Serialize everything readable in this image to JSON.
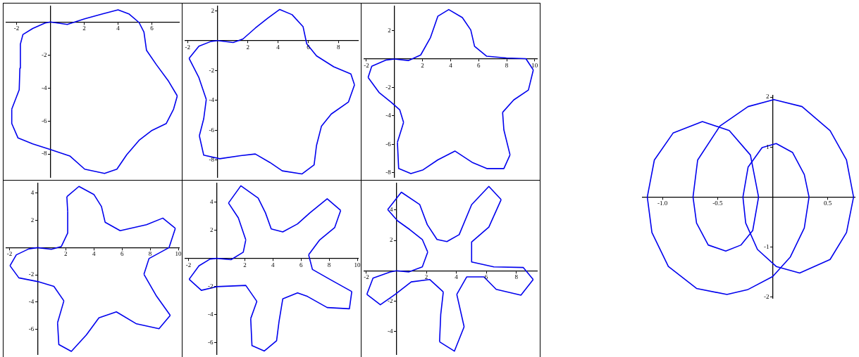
{
  "chart_data": [
    {
      "type": "line",
      "marker": "none",
      "line_style": "solid",
      "xlim": [
        -2.6,
        7.6
      ],
      "ylim": [
        -9.4,
        0.95
      ],
      "xticks": [
        -2,
        2,
        4,
        6
      ],
      "yticks": [
        -8,
        -6,
        -4,
        -2
      ],
      "series": [
        {
          "color": "#0000ee",
          "x": [
            0,
            1.0,
            2.03,
            3.05,
            4.0,
            4.66,
            5.24,
            5.53,
            5.68,
            6.26,
            6.99,
            7.5,
            7.28,
            6.85,
            5.97,
            5.24,
            4.51,
            3.93,
            3.2,
            2.03,
            1.15,
            0,
            -1.04,
            -1.91,
            -2.28,
            -2.28,
            -1.84,
            -1.8,
            -1.77,
            -1.62,
            -1.04,
            -0.31,
            0
          ],
          "values": [
            0,
            -0.15,
            0.19,
            0.48,
            0.74,
            0.48,
            -0.03,
            -0.61,
            -1.71,
            -2.58,
            -3.6,
            -4.48,
            -5.28,
            -6.15,
            -6.59,
            -7.17,
            -8.05,
            -8.92,
            -9.18,
            -8.92,
            -8.12,
            -7.73,
            -7.39,
            -7.03,
            -6.15,
            -5.28,
            -4.11,
            -2.8,
            -1.34,
            -0.76,
            -0.39,
            -0.06,
            0
          ]
        }
      ]
    },
    {
      "type": "line",
      "marker": "none",
      "line_style": "solid",
      "xlim": [
        -2.15,
        9.3
      ],
      "ylim": [
        -9.15,
        2.3
      ],
      "xticks": [
        -2,
        2,
        4,
        6,
        8
      ],
      "yticks": [
        -8,
        -6,
        -4,
        -2,
        2
      ],
      "series": [
        {
          "color": "#0000ee",
          "x": [
            0,
            1.02,
            1.67,
            2.49,
            3.3,
            4.11,
            4.93,
            5.66,
            5.9,
            6.55,
            7.69,
            8.83,
            9.07,
            8.67,
            7.53,
            6.88,
            6.55,
            6.39,
            5.58,
            4.28,
            3.46,
            2.49,
            1.51,
            0.13,
            -0.93,
            -1.22,
            -0.93,
            -0.76,
            -1.25,
            -1.9,
            -1.25,
            -0.44,
            0
          ],
          "values": [
            0,
            -0.13,
            0.11,
            0.84,
            1.49,
            2.09,
            1.74,
            0.93,
            -0.21,
            -1.02,
            -1.75,
            -2.24,
            -2.97,
            -4.11,
            -4.92,
            -5.73,
            -7.03,
            -8.33,
            -8.94,
            -8.73,
            -8.17,
            -7.6,
            -7.71,
            -7.92,
            -7.68,
            -6.38,
            -5.24,
            -3.94,
            -2.48,
            -1.19,
            -0.37,
            -0.05,
            0
          ]
        }
      ]
    },
    {
      "type": "line",
      "marker": "none",
      "line_style": "solid",
      "xlim": [
        -2.15,
        10.16
      ],
      "ylim": [
        -8.3,
        3.7
      ],
      "xticks": [
        -2,
        2,
        4,
        6,
        8,
        10
      ],
      "yticks": [
        -8,
        -6,
        -4,
        -2,
        2
      ],
      "series": [
        {
          "color": "#0000ee",
          "x": [
            0,
            0.99,
            1.87,
            2.57,
            3.09,
            3.87,
            4.84,
            5.44,
            5.71,
            6.58,
            7.98,
            9.37,
            9.9,
            9.55,
            8.5,
            7.71,
            7.8,
            8.24,
            7.8,
            6.58,
            5.53,
            4.31,
            3.09,
            2.04,
            1.17,
            0.3,
            0.21,
            0.65,
            0.38,
            -0.23,
            -1.1,
            -1.88,
            -1.62,
            -0.58,
            0
          ],
          "values": [
            0,
            -0.11,
            0.28,
            1.51,
            3.0,
            3.47,
            2.91,
            2.04,
            0.89,
            0.19,
            0.07,
            0.02,
            -0.77,
            -2.18,
            -2.88,
            -3.75,
            -4.98,
            -6.74,
            -7.7,
            -7.7,
            -7.26,
            -6.47,
            -7.09,
            -7.79,
            -8.05,
            -7.7,
            -5.86,
            -4.46,
            -3.58,
            -3.05,
            -2.35,
            -1.3,
            -0.51,
            -0.07,
            0
          ]
        }
      ]
    },
    {
      "type": "line",
      "marker": "none",
      "line_style": "solid",
      "xlim": [
        -2.22,
        10.05
      ],
      "ylim": [
        -7.83,
        4.72
      ],
      "xticks": [
        -2,
        2,
        4,
        6,
        8,
        10
      ],
      "yticks": [
        -6,
        -4,
        -2,
        2,
        4
      ],
      "series": [
        {
          "color": "#0000ee",
          "x": [
            0,
            0.98,
            1.69,
            2.14,
            2.14,
            2.08,
            2.94,
            4.0,
            4.54,
            4.8,
            5.87,
            7.74,
            8.9,
            9.79,
            9.34,
            7.92,
            7.56,
            8.45,
            9.43,
            8.63,
            7.03,
            5.6,
            4.36,
            3.47,
            2.4,
            1.51,
            1.42,
            1.87,
            1.16,
            0,
            -1.33,
            -1.96,
            -1.51,
            -0.62,
            0
          ],
          "values": [
            0,
            -0.12,
            0.09,
            1.07,
            2.67,
            3.74,
            4.5,
            3.91,
            3.02,
            1.87,
            1.25,
            1.69,
            2.17,
            1.42,
            0,
            -0.8,
            -1.96,
            -3.56,
            -4.98,
            -5.96,
            -5.6,
            -4.72,
            -5.16,
            -6.41,
            -7.62,
            -7.12,
            -5.52,
            -3.91,
            -2.85,
            -2.49,
            -2.22,
            -1.33,
            -0.53,
            -0.09,
            0
          ]
        }
      ]
    },
    {
      "type": "line",
      "marker": "none",
      "line_style": "solid",
      "xlim": [
        -2.23,
        10.05
      ],
      "ylim": [
        -6.84,
        5.35
      ],
      "xticks": [
        -2,
        2,
        4,
        6,
        8,
        10
      ],
      "yticks": [
        -6,
        -4,
        -2,
        2,
        4
      ],
      "series": [
        {
          "color": "#0000ee",
          "x": [
            0,
            1.02,
            1.89,
            2.07,
            1.54,
            0.84,
            1.72,
            2.95,
            3.47,
            3.88,
            4.7,
            5.75,
            6.63,
            7.86,
            8.82,
            8.39,
            7.33,
            6.54,
            6.81,
            8.04,
            9.61,
            9.44,
            7.86,
            6.46,
            5.75,
            4.7,
            4.44,
            4.26,
            3.39,
            2.51,
            2.42,
            2.86,
            2.07,
            0,
            -1.09,
            -1.96,
            -1.26,
            -0.47,
            0
          ],
          "values": [
            0,
            -0.09,
            0.44,
            1.32,
            2.89,
            3.95,
            5.18,
            4.3,
            3.25,
            2.1,
            1.89,
            2.46,
            3.25,
            4.25,
            3.42,
            2.19,
            1.32,
            0.26,
            -0.79,
            -1.49,
            -2.37,
            -3.6,
            -3.51,
            -2.72,
            -2.46,
            -2.89,
            -4.47,
            -5.88,
            -6.61,
            -6.23,
            -4.3,
            -3.07,
            -1.93,
            -2.02,
            -2.28,
            -1.49,
            -0.53,
            -0.05,
            0
          ]
        }
      ]
    },
    {
      "type": "line",
      "marker": "none",
      "line_style": "solid",
      "xlim": [
        -2.14,
        9.38
      ],
      "ylim": [
        -5.51,
        5.76
      ],
      "xticks": [
        -2,
        2,
        4,
        6,
        8
      ],
      "yticks": [
        -4,
        -2,
        2,
        4
      ],
      "series": [
        {
          "color": "#0000ee",
          "x": [
            0,
            0.82,
            1.73,
            2.09,
            1.73,
            0.9,
            0.08,
            -0.58,
            0.33,
            1.56,
            2.06,
            2.71,
            3.37,
            4.19,
            5.02,
            6.17,
            6.99,
            6.17,
            5.02,
            5.02,
            6.5,
            8.47,
            9.13,
            8.31,
            6.66,
            5.84,
            4.69,
            4.03,
            4.52,
            3.87,
            2.88,
            2.96,
            3.13,
            2.22,
            0.99,
            -0.08,
            -1.07,
            -1.97,
            -1.56,
            -0.41,
            0
          ],
          "values": [
            0,
            -0.08,
            0.25,
            1.23,
            2.06,
            2.71,
            3.29,
            4.03,
            5.18,
            4.36,
            3.04,
            2.06,
            1.92,
            2.38,
            4.36,
            5.56,
            4.69,
            2.88,
            1.89,
            0.58,
            0.25,
            0.21,
            -0.58,
            -1.61,
            -1.23,
            -0.41,
            -0.41,
            -1.56,
            -3.7,
            -5.31,
            -4.69,
            -2.88,
            -1.4,
            -0.58,
            -0.74,
            -1.56,
            -2.25,
            -1.56,
            -0.49,
            -0.08,
            0
          ]
        }
      ]
    },
    {
      "type": "line",
      "marker": "none",
      "line_style": "solid",
      "xlim": [
        -1.18,
        0.745
      ],
      "ylim": [
        -2.02,
        2.03
      ],
      "xticks": [
        {
          "value": -1,
          "label": "-1.0"
        },
        {
          "value": -0.5,
          "label": "-0.5"
        },
        {
          "value": 0.5,
          "label": "0.5"
        }
      ],
      "yticks": [
        -2,
        -1,
        1,
        2
      ],
      "series": [
        {
          "color": "#0000ee",
          "x": [
            -1.138,
            -1.074,
            -0.904,
            -0.638,
            -0.394,
            -0.202,
            -0.128,
            -0.181,
            -0.287,
            -0.426,
            -0.585,
            -0.691,
            -0.723,
            -0.681,
            -0.479,
            -0.223,
            0.011,
            0.266,
            0.521,
            0.67,
            0.734,
            0.67,
            0.521,
            0.245,
            0.032,
            -0.138,
            -0.245,
            -0.27,
            -0.223,
            -0.096,
            0.032,
            0.181,
            0.287,
            0.33,
            0.287,
            0.16,
            0,
            -0.223,
            -0.415,
            -0.691,
            -0.947,
            -1.096,
            -1.138
          ],
          "values": [
            0,
            0.74,
            1.28,
            1.51,
            1.33,
            0.84,
            0,
            -0.67,
            -0.96,
            -1.08,
            -0.96,
            -0.52,
            0,
            0.74,
            1.42,
            1.81,
            1.95,
            1.81,
            1.33,
            0.74,
            0,
            -0.71,
            -1.25,
            -1.52,
            -1.39,
            -1.05,
            -0.52,
            0,
            0.6,
            0.99,
            1.07,
            0.89,
            0.45,
            0,
            -0.62,
            -1.2,
            -1.59,
            -1.85,
            -1.95,
            -1.83,
            -1.39,
            -0.71,
            0
          ]
        }
      ]
    }
  ]
}
